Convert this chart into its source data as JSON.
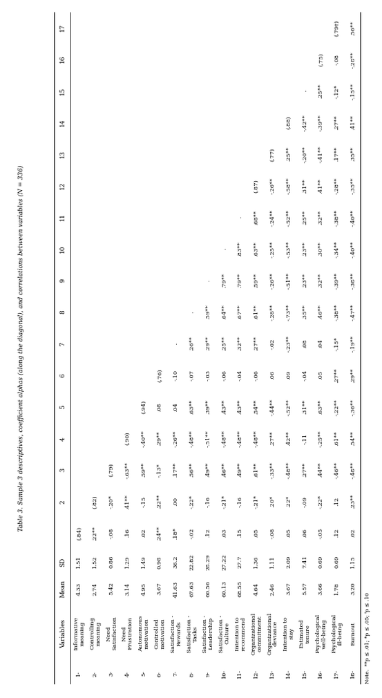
{
  "title": "Table 3. Sample 3 descriptives, coefficient alphas (along the diagonal), and correlations between variables (N = 336)",
  "note": "Note.  **p ≤ .01; *p ≤ .05; ᵗp ≤ .10",
  "rows": [
    {
      "num": "1-",
      "var": "Informative\nmeaning",
      "mean": "4.33",
      "sd": "1.51",
      "vals": [
        "(.84)",
        "",
        "",
        "",
        "",
        "",
        "",
        "",
        "",
        "",
        "",
        "",
        "",
        "",
        "",
        "",
        ""
      ]
    },
    {
      "num": "2-",
      "var": "Controlling\nmeaning",
      "mean": "2.74",
      "sd": "1.52",
      "vals": [
        ".22**",
        "(.82)",
        "",
        "",
        "",
        "",
        "",
        "",
        "",
        "",
        "",
        "",
        "",
        "",
        "",
        "",
        ""
      ]
    },
    {
      "num": "3-",
      "var": "Need\nSatisfaction",
      "mean": "5.42",
      "sd": "0.86",
      "vals": [
        "-.08",
        "-.20*",
        "(.79)",
        "",
        "",
        "",
        "",
        "",
        "",
        "",
        "",
        "",
        "",
        "",
        "",
        "",
        ""
      ]
    },
    {
      "num": "4-",
      "var": "Need\nFrustration",
      "mean": "3.14",
      "sd": "1.29",
      "vals": [
        ".16",
        ".41**",
        "-.63**",
        "(.90)",
        "",
        "",
        "",
        "",
        "",
        "",
        "",
        "",
        "",
        "",
        "",
        "",
        ""
      ]
    },
    {
      "num": "5-",
      "var": "Autonomous\nmotivation",
      "mean": "4.95",
      "sd": "1.49",
      "vals": [
        ".02",
        "-.15",
        ".59**",
        "-.40**",
        "(.94)",
        "",
        "",
        "",
        "",
        "",
        "",
        "",
        "",
        "",
        "",
        "",
        ""
      ]
    },
    {
      "num": "6-",
      "var": "Controlled\nmotivation",
      "mean": "3.67",
      "sd": "0.98",
      "vals": [
        ".24**",
        ".22**",
        "-.13*",
        ".29**",
        ".08",
        "(.76)",
        "",
        "",
        "",
        "",
        "",
        "",
        "",
        "",
        "",
        "",
        ""
      ]
    },
    {
      "num": "7-",
      "var": "Satisfaction -\nRewards",
      "mean": "41.63",
      "sd": "36.2",
      "vals": [
        ".18*",
        ".00",
        ".17**",
        "-.26**",
        ".04",
        "-.10",
        ".",
        "",
        "",
        "",
        "",
        "",
        "",
        "",
        "",
        "",
        ""
      ]
    },
    {
      "num": "8-",
      "var": "Satisfaction -\nTasks",
      "mean": "67.63",
      "sd": "22.82",
      "vals": [
        "-.02",
        "-.22*",
        ".56**",
        "-.48**",
        ".63**",
        "-.07",
        ".26**",
        ".",
        "",
        "",
        "",
        "",
        "",
        "",
        "",
        "",
        ""
      ]
    },
    {
      "num": "9-",
      "var": "Satisfaction -\nLeadership",
      "mean": "60.56",
      "sd": "28.29",
      "vals": [
        ".12",
        "-.16",
        ".49**",
        "-.51**",
        ".39**",
        "-.03",
        ".29**",
        ".59**",
        ".",
        "",
        "",
        "",
        "",
        "",
        "",
        "",
        ""
      ]
    },
    {
      "num": "10-",
      "var": "Satisfaction -\nCulture",
      "mean": "60.13",
      "sd": "27.22",
      "vals": [
        ".03",
        "-.21*",
        ".46**",
        "-.48**",
        ".43**",
        "-.06",
        ".25**",
        ".64**",
        ".79**",
        ".",
        "",
        "",
        "",
        "",
        "",
        "",
        ""
      ]
    },
    {
      "num": "11-",
      "var": "Intention to\nrecommend",
      "mean": "68.55",
      "sd": "27.7",
      "vals": [
        ".15",
        "-.16",
        ".49**",
        "-.48**",
        ".43**",
        "-.04",
        ".32**",
        ".67**",
        ".79**",
        ".83**",
        ".",
        "",
        "",
        "",
        "",
        "",
        ""
      ]
    },
    {
      "num": "12-",
      "var": "Organizational\ncommitment",
      "mean": "4.64",
      "sd": "1.36",
      "vals": [
        ".05",
        "-.21*",
        ".61**",
        "-.48**",
        ".54**",
        "-.06",
        ".27**",
        ".61**",
        ".59**",
        ".63**",
        ".68**",
        "(.87)",
        "",
        "",
        "",
        "",
        ""
      ]
    },
    {
      "num": "13-",
      "var": "Organizational\ndeviance",
      "mean": "2.46",
      "sd": "1.11",
      "vals": [
        "-.08",
        ".20*",
        "-.33**",
        ".27**",
        "-.44**",
        ".06",
        "-.02",
        "-.28**",
        "-.26**",
        "-.25**",
        "-.24**",
        "-.26**",
        "(.77)",
        "",
        "",
        "",
        ""
      ]
    },
    {
      "num": "14-",
      "var": "Intention to\nstay",
      "mean": "3.67",
      "sd": "2.09",
      "vals": [
        ".05",
        ".22*",
        "-.48**",
        ".42**",
        "-.52**",
        ".09",
        "-.23**",
        "-.73**",
        "-.51**",
        "-.53**",
        "-.52**",
        "-.58**",
        ".25**",
        "(.88)",
        "",
        "",
        ""
      ]
    },
    {
      "num": "15-",
      "var": "Estimated\ntenure",
      "mean": "5.57",
      "sd": "7.41",
      "vals": [
        ".06",
        "-.09",
        ".27**",
        "-.11",
        ".31**",
        "-.04",
        ".08",
        ".35**",
        ".23**",
        ".23**",
        ".25**",
        ".31**",
        "-.20**",
        "-.42**",
        ".",
        "",
        ""
      ]
    },
    {
      "num": "16-",
      "var": "Psychological\nwell-being",
      "mean": "3.66",
      "sd": "0.69",
      "vals": [
        "-.05",
        "-.22*",
        ".44**",
        "-.25**",
        ".63**",
        ".05",
        ".04",
        ".46**",
        ".32**",
        ".30**",
        ".32**",
        ".41**",
        "-.41**",
        "-.39**",
        ".25**",
        "(.75)",
        ""
      ]
    },
    {
      "num": "17-",
      "var": "Psychological\nill-being",
      "mean": "1.78",
      "sd": "0.69",
      "vals": [
        ".12",
        ".12",
        "-.46**",
        ".61**",
        "-.22**",
        ".27**",
        "-.15*",
        "-.38**",
        "-.39**",
        "-.34**",
        "-.38**",
        "-.28**",
        ".17**",
        ".27**",
        "-.12*",
        "-.08",
        ""
      ]
    },
    {
      "num": "18-",
      "var": "Burnout",
      "mean": "3.20",
      "sd": "1.15",
      "vals": [
        ".02",
        ".23**",
        "-.48**",
        ".54**",
        "-.36**",
        ".29**",
        "-.19**",
        "-.47**",
        "-.38**",
        "-.40**",
        "-.40**",
        "-.35**",
        ".35**",
        ".41**",
        "-.15**",
        "-.28**",
        ""
      ]
    }
  ],
  "col17_vals": [
    "",
    "",
    "",
    "",
    "",
    "",
    "",
    "",
    "",
    "",
    "",
    "",
    "",
    "",
    "",
    "",
    "(.79†)",
    ".56**"
  ],
  "figsize_landscape": [
    10.1,
    5.53
  ],
  "dpi": 100
}
